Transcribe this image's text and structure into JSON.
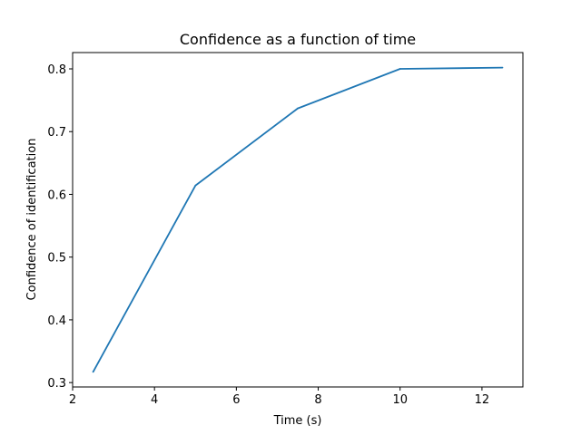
{
  "chart_data": {
    "type": "line",
    "title": "Confidence as a function of time",
    "xlabel": "Time (s)",
    "ylabel": "Confidence of identification",
    "x": [
      2.5,
      5,
      7.5,
      10,
      12.5
    ],
    "series": [
      {
        "values": [
          0.317,
          0.614,
          0.737,
          0.8,
          0.802
        ],
        "color": "#1f77b4"
      }
    ],
    "xlim": [
      2.0,
      13.0
    ],
    "ylim": [
      0.293,
      0.826
    ],
    "xticks": [
      2,
      4,
      6,
      8,
      10,
      12
    ],
    "yticks": [
      0.3,
      0.4,
      0.5,
      0.6,
      0.7,
      0.8
    ],
    "xtick_labels": [
      "2",
      "4",
      "6",
      "8",
      "10",
      "12"
    ],
    "ytick_labels": [
      "0.3",
      "0.4",
      "0.5",
      "0.6",
      "0.7",
      "0.8"
    ],
    "grid": false,
    "legend": false
  }
}
